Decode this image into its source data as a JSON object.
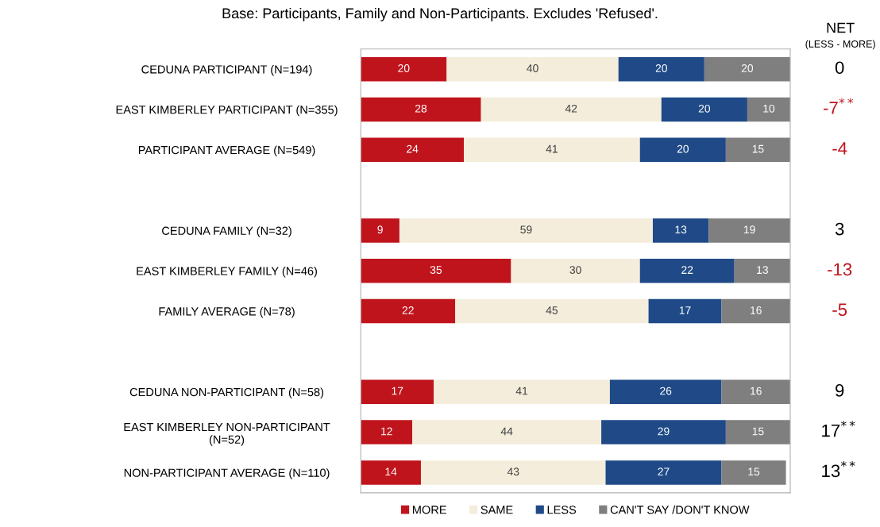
{
  "chart_data": {
    "type": "bar",
    "orientation": "horizontal",
    "stacked": true,
    "subtitle": "Base: Participants, Family and Non-Participants. Excludes 'Refused'.",
    "categories": [
      "CEDUNA PARTICIPANT (N=194)",
      "EAST KIMBERLEY PARTICIPANT (N=355)",
      "PARTICIPANT AVERAGE (N=549)",
      null,
      "CEDUNA FAMILY (N=32)",
      "EAST KIMBERLEY FAMILY (N=46)",
      "FAMILY AVERAGE (N=78)",
      null,
      "CEDUNA NON-PARTICIPANT (N=58)",
      "EAST KIMBERLEY NON-PARTICIPANT\n(N=52)",
      "NON-PARTICIPANT AVERAGE (N=110)"
    ],
    "series": [
      {
        "name": "MORE",
        "color": "#c0141c",
        "values": [
          20,
          28,
          24,
          null,
          9,
          35,
          22,
          null,
          17,
          12,
          14
        ]
      },
      {
        "name": "SAME",
        "color": "#f4eddb",
        "values": [
          40,
          42,
          41,
          null,
          59,
          30,
          45,
          null,
          41,
          44,
          43
        ]
      },
      {
        "name": "LESS",
        "color": "#1f4a87",
        "values": [
          20,
          20,
          20,
          null,
          13,
          22,
          17,
          null,
          26,
          29,
          27
        ]
      },
      {
        "name": "CAN'T SAY /DON'T KNOW",
        "color": "#7f7f7f",
        "values": [
          20,
          10,
          15,
          null,
          19,
          13,
          16,
          null,
          16,
          15,
          15
        ]
      }
    ],
    "xlim": [
      0,
      100
    ],
    "tick_labels": "y",
    "data_labels": true,
    "legend": "bottom",
    "grid": false,
    "annotations": [
      "NET",
      "(LESS - MORE)",
      "0",
      "-7$^{**}$",
      "-4",
      "3",
      "-13",
      "-5",
      "9",
      "17$^{**}$",
      "13$^{**}$"
    ]
  }
}
